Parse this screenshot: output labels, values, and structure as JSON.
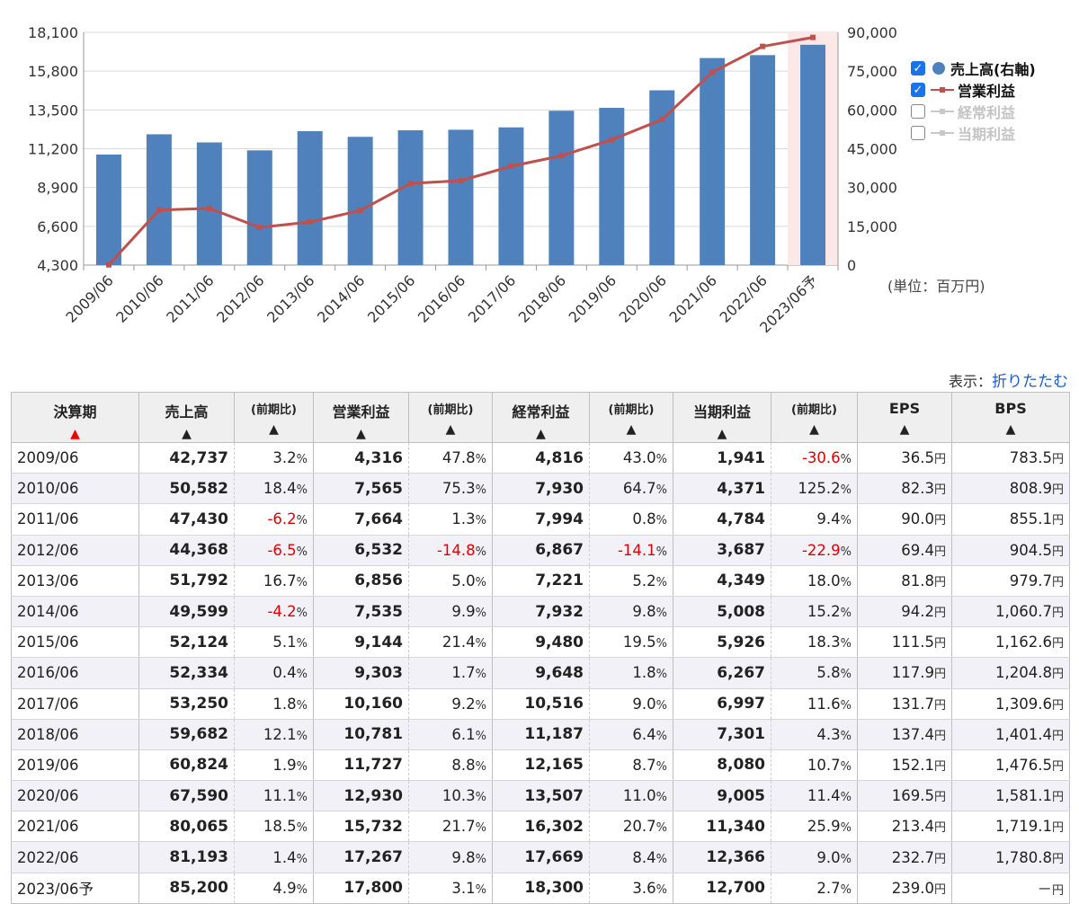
{
  "chart_data": {
    "type": "bar",
    "categories": [
      "2009/06",
      "2010/06",
      "2011/06",
      "2012/06",
      "2013/06",
      "2014/06",
      "2015/06",
      "2016/06",
      "2017/06",
      "2018/06",
      "2019/06",
      "2020/06",
      "2021/06",
      "2022/06",
      "2023/06予"
    ],
    "series": [
      {
        "name": "売上高(右軸)",
        "type": "bar",
        "axis": "right",
        "color": "#4f81bd",
        "values": [
          42737,
          50582,
          47430,
          44368,
          51792,
          49599,
          52124,
          52334,
          53250,
          59682,
          60824,
          67590,
          80065,
          81193,
          85200
        ]
      },
      {
        "name": "営業利益",
        "type": "line",
        "axis": "left",
        "color": "#c0504d",
        "values": [
          4316,
          7565,
          7664,
          6532,
          6856,
          7535,
          9144,
          9303,
          10160,
          10781,
          11727,
          12930,
          15732,
          17267,
          17800
        ]
      }
    ],
    "left_axis": {
      "ticks": [
        "18,100",
        "15,800",
        "13,500",
        "11,200",
        "8,900",
        "6,600",
        "4,300"
      ],
      "ylim": [
        4300,
        18100
      ]
    },
    "right_axis": {
      "ticks": [
        "90,000",
        "75,000",
        "60,000",
        "45,000",
        "30,000",
        "15,000",
        "0"
      ],
      "ylim": [
        0,
        90000
      ]
    },
    "forecast_index": 14,
    "forecast_highlight_color": "#fde8e8",
    "grid": true,
    "legend_placement": "right"
  },
  "legend": [
    {
      "label": "売上高(右軸)",
      "checked": true,
      "marker": "dot",
      "color": "#4f81bd",
      "active": true
    },
    {
      "label": "営業利益",
      "checked": true,
      "marker": "line",
      "color": "#c0504d",
      "active": true
    },
    {
      "label": "経常利益",
      "checked": false,
      "marker": "line",
      "color": "#c8c8c8",
      "active": false
    },
    {
      "label": "当期利益",
      "checked": false,
      "marker": "line",
      "color": "#c8c8c8",
      "active": false
    }
  ],
  "unit_note": "(単位：百万円)",
  "display_toggle": {
    "prefix": "表示：",
    "link": "折りたたむ"
  },
  "table": {
    "headers": [
      {
        "label": "決算期",
        "arrow": "▲",
        "arrow_color": "red"
      },
      {
        "label": "売上高",
        "arrow": "▲"
      },
      {
        "label": "(前期比)",
        "arrow": "▲",
        "small": true
      },
      {
        "label": "営業利益",
        "arrow": "▲"
      },
      {
        "label": "(前期比)",
        "arrow": "▲",
        "small": true
      },
      {
        "label": "経常利益",
        "arrow": "▲"
      },
      {
        "label": "(前期比)",
        "arrow": "▲",
        "small": true
      },
      {
        "label": "当期利益",
        "arrow": "▲"
      },
      {
        "label": "(前期比)",
        "arrow": "▲",
        "small": true
      },
      {
        "label": "EPS",
        "arrow": "▲"
      },
      {
        "label": "BPS",
        "arrow": "▲"
      }
    ],
    "rows": [
      [
        "2009/06",
        "42,737",
        "3.2",
        "4,316",
        "47.8",
        "4,816",
        "43.0",
        "1,941",
        "-30.6",
        "36.5",
        "783.5"
      ],
      [
        "2010/06",
        "50,582",
        "18.4",
        "7,565",
        "75.3",
        "7,930",
        "64.7",
        "4,371",
        "125.2",
        "82.3",
        "808.9"
      ],
      [
        "2011/06",
        "47,430",
        "-6.2",
        "7,664",
        "1.3",
        "7,994",
        "0.8",
        "4,784",
        "9.4",
        "90.0",
        "855.1"
      ],
      [
        "2012/06",
        "44,368",
        "-6.5",
        "6,532",
        "-14.8",
        "6,867",
        "-14.1",
        "3,687",
        "-22.9",
        "69.4",
        "904.5"
      ],
      [
        "2013/06",
        "51,792",
        "16.7",
        "6,856",
        "5.0",
        "7,221",
        "5.2",
        "4,349",
        "18.0",
        "81.8",
        "979.7"
      ],
      [
        "2014/06",
        "49,599",
        "-4.2",
        "7,535",
        "9.9",
        "7,932",
        "9.8",
        "5,008",
        "15.2",
        "94.2",
        "1,060.7"
      ],
      [
        "2015/06",
        "52,124",
        "5.1",
        "9,144",
        "21.4",
        "9,480",
        "19.5",
        "5,926",
        "18.3",
        "111.5",
        "1,162.6"
      ],
      [
        "2016/06",
        "52,334",
        "0.4",
        "9,303",
        "1.7",
        "9,648",
        "1.8",
        "6,267",
        "5.8",
        "117.9",
        "1,204.8"
      ],
      [
        "2017/06",
        "53,250",
        "1.8",
        "10,160",
        "9.2",
        "10,516",
        "9.0",
        "6,997",
        "11.6",
        "131.7",
        "1,309.6"
      ],
      [
        "2018/06",
        "59,682",
        "12.1",
        "10,781",
        "6.1",
        "11,187",
        "6.4",
        "7,301",
        "4.3",
        "137.4",
        "1,401.4"
      ],
      [
        "2019/06",
        "60,824",
        "1.9",
        "11,727",
        "8.8",
        "12,165",
        "8.7",
        "8,080",
        "10.7",
        "152.1",
        "1,476.5"
      ],
      [
        "2020/06",
        "67,590",
        "11.1",
        "12,930",
        "10.3",
        "13,507",
        "11.0",
        "9,005",
        "11.4",
        "169.5",
        "1,581.1"
      ],
      [
        "2021/06",
        "80,065",
        "18.5",
        "15,732",
        "21.7",
        "16,302",
        "20.7",
        "11,340",
        "25.9",
        "213.4",
        "1,719.1"
      ],
      [
        "2022/06",
        "81,193",
        "1.4",
        "17,267",
        "9.8",
        "17,669",
        "8.4",
        "12,366",
        "9.0",
        "232.7",
        "1,780.8"
      ],
      [
        "2023/06予",
        "85,200",
        "4.9",
        "17,800",
        "3.1",
        "18,300",
        "3.6",
        "12,700",
        "2.7",
        "239.0",
        "－"
      ]
    ],
    "percent_suffix": "%",
    "yen_suffix": "円"
  }
}
